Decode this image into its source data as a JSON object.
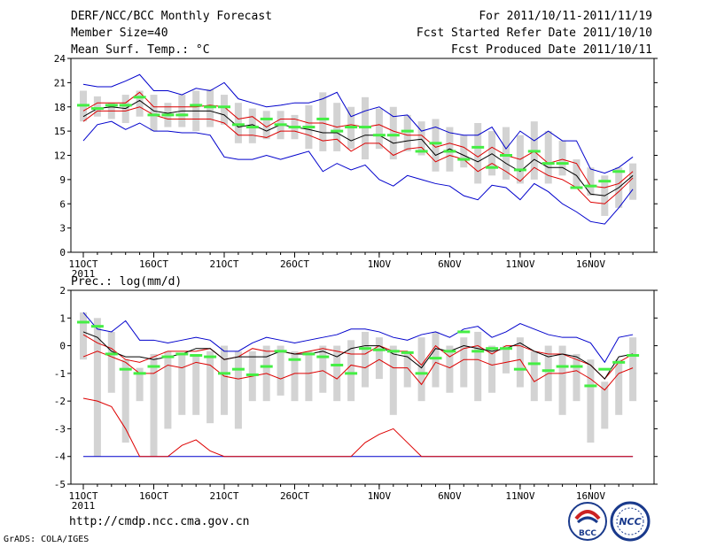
{
  "header": {
    "title": "DERF/NCC/BCC Monthly Forecast",
    "member_size": "Member Size=40",
    "variable": "Mean Surf. Temp.: °C",
    "forecast_period": "For 2011/10/11-2011/11/19",
    "refer_date": "Fcst Started Refer Date 2011/10/10",
    "produced_date": "Fcst Produced Date 2011/10/11"
  },
  "footer": {
    "url": "http://cmdp.ncc.cma.gov.cn",
    "grads": "GrADS: COLA/IGES",
    "logo_bcc": "BCC",
    "logo_ncc": "NCC"
  },
  "colors": {
    "box": "#d3d3d3",
    "outer": "#0000cc",
    "inner": "#dd0000",
    "median": "#000000",
    "obs": "#44ee44"
  },
  "chart_data": [
    {
      "type": "line",
      "title": "Mean Surf. Temp.: °C",
      "ylim": [
        0,
        24
      ],
      "yticks": [
        0,
        3,
        6,
        9,
        12,
        15,
        18,
        21,
        24
      ],
      "x_ticks": [
        {
          "day": 0,
          "label": "11OCT",
          "sub": "2011"
        },
        {
          "day": 5,
          "label": "16OCT"
        },
        {
          "day": 10,
          "label": "21OCT"
        },
        {
          "day": 15,
          "label": "26OCT"
        },
        {
          "day": 21,
          "label": "1NOV"
        },
        {
          "day": 26,
          "label": "6NOV"
        },
        {
          "day": 31,
          "label": "11NOV"
        },
        {
          "day": 36,
          "label": "16NOV"
        }
      ],
      "days": 40,
      "box_lo": [
        16.2,
        16.8,
        16.5,
        16.0,
        16.8,
        15.0,
        15.5,
        15.5,
        15.0,
        15.5,
        15.8,
        13.5,
        13.5,
        14.0,
        14.0,
        14.0,
        12.8,
        12.5,
        12.5,
        12.8,
        11.5,
        12.8,
        11.5,
        12.5,
        12.0,
        10.0,
        10.0,
        10.5,
        8.5,
        9.5,
        9.0,
        8.5,
        9.0,
        8.5,
        9.5,
        8.0,
        7.0,
        4.5,
        5.5,
        6.5
      ],
      "box_hi": [
        20.0,
        19.3,
        18.5,
        19.5,
        20.0,
        19.5,
        18.5,
        19.5,
        20.0,
        20.2,
        19.5,
        18.5,
        17.8,
        17.5,
        17.5,
        17.0,
        18.2,
        19.8,
        18.5,
        18.0,
        19.2,
        17.8,
        18.0,
        17.0,
        16.2,
        16.5,
        15.5,
        14.5,
        16.0,
        15.0,
        15.5,
        14.5,
        16.2,
        15.0,
        13.8,
        11.5,
        10.5,
        9.5,
        10.5,
        11.0
      ],
      "outer_hi": [
        20.8,
        20.5,
        20.5,
        21.2,
        22.0,
        20.0,
        20.0,
        19.5,
        20.3,
        20.0,
        21.0,
        19.0,
        18.5,
        18.0,
        18.2,
        18.5,
        18.5,
        19.0,
        19.8,
        16.8,
        17.5,
        18.0,
        16.8,
        17.0,
        15.0,
        15.5,
        14.8,
        14.5,
        14.5,
        15.5,
        12.8,
        15.0,
        13.8,
        15.0,
        13.8,
        13.8,
        10.3,
        9.8,
        10.5,
        11.8
      ],
      "outer_lo": [
        13.8,
        15.8,
        16.2,
        15.2,
        16.0,
        15.0,
        15.0,
        14.8,
        14.8,
        14.5,
        11.8,
        11.5,
        11.5,
        12.0,
        11.5,
        12.0,
        12.5,
        10.0,
        11.0,
        10.2,
        10.8,
        9.0,
        8.2,
        9.5,
        9.0,
        8.5,
        8.2,
        7.0,
        6.5,
        8.3,
        8.0,
        6.5,
        8.5,
        7.5,
        6.0,
        5.0,
        3.8,
        3.5,
        5.5,
        7.8
      ],
      "inner_hi": [
        17.5,
        18.5,
        18.5,
        18.5,
        19.8,
        18.0,
        18.0,
        18.0,
        18.0,
        18.2,
        18.0,
        16.5,
        16.8,
        15.5,
        16.5,
        16.5,
        16.0,
        16.0,
        15.5,
        15.8,
        15.5,
        15.8,
        15.0,
        14.5,
        14.5,
        13.0,
        13.5,
        13.0,
        11.8,
        13.0,
        12.0,
        11.5,
        12.5,
        11.0,
        11.5,
        11.0,
        8.2,
        8.0,
        8.5,
        10.0
      ],
      "inner_lo": [
        16.2,
        17.5,
        17.5,
        17.5,
        18.0,
        17.0,
        16.5,
        16.5,
        16.5,
        16.5,
        16.0,
        14.5,
        14.5,
        14.2,
        15.0,
        15.0,
        14.5,
        13.8,
        14.0,
        12.5,
        13.5,
        13.5,
        12.0,
        12.8,
        13.0,
        11.2,
        12.0,
        11.5,
        10.0,
        11.0,
        10.0,
        8.8,
        10.5,
        9.5,
        9.0,
        8.0,
        6.2,
        6.0,
        7.5,
        9.2
      ],
      "median": [
        16.8,
        17.8,
        18.0,
        17.8,
        18.8,
        17.5,
        17.2,
        17.5,
        17.5,
        17.5,
        17.0,
        15.5,
        15.8,
        15.0,
        15.8,
        15.5,
        15.2,
        14.8,
        14.8,
        13.8,
        14.5,
        14.5,
        13.5,
        13.8,
        14.0,
        12.0,
        12.8,
        12.0,
        11.2,
        12.2,
        11.0,
        10.0,
        11.5,
        10.5,
        10.5,
        9.5,
        7.2,
        7.0,
        8.0,
        9.5
      ],
      "obs": [
        18.2,
        17.8,
        18.2,
        18.2,
        19.2,
        17.0,
        17.0,
        17.0,
        18.2,
        18.0,
        18.0,
        15.8,
        15.5,
        16.5,
        15.8,
        15.5,
        15.5,
        16.5,
        15.0,
        15.5,
        15.5,
        14.5,
        14.5,
        15.0,
        12.5,
        13.5,
        12.5,
        11.5,
        13.0,
        10.5,
        12.0,
        10.2,
        12.5,
        11.0,
        11.0,
        8.0,
        8.2,
        8.8,
        10.0,
        null
      ]
    },
    {
      "type": "line",
      "title": "Prec.: log(mm/d)",
      "ylim": [
        -5,
        2
      ],
      "yticks": [
        -5,
        -4,
        -3,
        -2,
        -1,
        0,
        1,
        2
      ],
      "x_ticks": [
        {
          "day": 0,
          "label": "11OCT",
          "sub": "2011"
        },
        {
          "day": 5,
          "label": "16OCT"
        },
        {
          "day": 10,
          "label": "21OCT"
        },
        {
          "day": 15,
          "label": "26OCT"
        },
        {
          "day": 21,
          "label": "1NOV"
        },
        {
          "day": 26,
          "label": "6NOV"
        },
        {
          "day": 31,
          "label": "11NOV"
        },
        {
          "day": 36,
          "label": "16NOV"
        }
      ],
      "days": 40,
      "box_lo": [
        -0.5,
        -4,
        -1.7,
        -3.5,
        -2.0,
        -4,
        -3,
        -2.5,
        -2.5,
        -2.8,
        -2.5,
        -3.0,
        -2.0,
        -2.0,
        -1.8,
        -2.0,
        -2.0,
        -1.7,
        -2.0,
        -2.0,
        -1.5,
        -1.2,
        -2.5,
        -1.5,
        -2.0,
        -1.5,
        -1.7,
        -1.5,
        -2.0,
        -1.7,
        -1.0,
        -1.5,
        -2.0,
        -2.0,
        -2.5,
        -2.0,
        -3.5,
        -3.0,
        -2.5,
        -2.0
      ],
      "box_hi": [
        1.2,
        1.0,
        0.5,
        -0.5,
        -0.8,
        -0.3,
        -0.2,
        -0.3,
        -0.3,
        -0.2,
        0.0,
        -0.2,
        -0.2,
        0.0,
        0.0,
        -0.2,
        -0.2,
        0.0,
        0.0,
        0.2,
        0.5,
        0.3,
        0.0,
        -0.2,
        0.3,
        0.5,
        0.0,
        0.3,
        0.5,
        0.0,
        0.0,
        0.3,
        -0.2,
        0.0,
        0.0,
        -0.3,
        -0.5,
        -1.3,
        -0.5,
        0.3
      ],
      "outer_hi": [
        1.2,
        0.6,
        0.5,
        0.9,
        0.2,
        0.2,
        0.1,
        0.2,
        0.3,
        0.2,
        -0.2,
        -0.2,
        0.1,
        0.3,
        0.2,
        0.1,
        0.2,
        0.3,
        0.4,
        0.6,
        0.6,
        0.5,
        0.3,
        0.2,
        0.4,
        0.5,
        0.3,
        0.6,
        0.7,
        0.3,
        0.5,
        0.8,
        0.6,
        0.4,
        0.3,
        0.3,
        0.1,
        -0.6,
        0.3,
        0.4
      ],
      "outer_lo": [
        -4,
        -4,
        -4,
        -4,
        -4,
        -4,
        -4,
        -4,
        -4,
        -4,
        -4,
        -4,
        -4,
        -4,
        -4,
        -4,
        -4,
        -4,
        -4,
        -4,
        -4,
        -4,
        -4,
        -4,
        -4,
        -4,
        -4,
        -4,
        -4,
        -4,
        -4,
        -4,
        -4,
        -4,
        -4,
        -4,
        -4,
        -4,
        -4,
        -4
      ],
      "inner_hi": [
        0.4,
        0.1,
        -0.1,
        -0.5,
        -0.6,
        -0.4,
        -0.2,
        -0.2,
        -0.2,
        -0.1,
        -0.5,
        -0.4,
        -0.1,
        -0.2,
        -0.2,
        -0.3,
        -0.2,
        -0.1,
        -0.2,
        -0.3,
        -0.3,
        0.0,
        -0.2,
        -0.2,
        -0.7,
        0.0,
        -0.4,
        -0.1,
        0.0,
        -0.3,
        0.0,
        0.0,
        -0.2,
        -0.3,
        -0.3,
        -0.5,
        -0.7,
        -1.2,
        -0.6,
        -0.3
      ],
      "inner_lo": [
        -1.9,
        -2.0,
        -2.2,
        -3.0,
        -4.0,
        -4.0,
        -4.0,
        -3.6,
        -3.4,
        -3.8,
        -4.0,
        -4.0,
        -4.0,
        -4.0,
        -4.0,
        -4.0,
        -4.0,
        -4.0,
        -4.0,
        -4.0,
        -3.5,
        -3.2,
        -3.0,
        -3.5,
        -4.0,
        -4.0,
        -4.0,
        -4.0,
        -4.0,
        -4.0,
        -4.0,
        -4.0,
        -4.0,
        -4.0,
        -4.0,
        -4.0,
        -4.0,
        -4.0,
        -4.0,
        -4.0
      ],
      "red2": [
        -0.4,
        -0.2,
        -0.4,
        -0.6,
        -1.0,
        -1.0,
        -0.7,
        -0.8,
        -0.6,
        -0.7,
        -1.1,
        -1.2,
        -1.1,
        -1.0,
        -1.2,
        -1.0,
        -1.0,
        -0.9,
        -1.2,
        -0.7,
        -0.8,
        -0.5,
        -0.8,
        -0.8,
        -1.4,
        -0.6,
        -0.8,
        -0.5,
        -0.5,
        -0.7,
        -0.6,
        -0.5,
        -1.3,
        -1.0,
        -1.0,
        -0.9,
        -1.2,
        -1.6,
        -1.0,
        -0.8
      ],
      "median": [
        0.5,
        0.3,
        -0.2,
        -0.4,
        -0.4,
        -0.5,
        -0.4,
        -0.3,
        -0.1,
        -0.1,
        -0.5,
        -0.4,
        -0.4,
        -0.4,
        -0.2,
        -0.3,
        -0.3,
        -0.2,
        -0.4,
        -0.1,
        0.0,
        0.0,
        -0.3,
        -0.4,
        -0.8,
        -0.1,
        -0.2,
        0.0,
        -0.1,
        -0.2,
        -0.1,
        0.1,
        -0.2,
        -0.4,
        -0.3,
        -0.4,
        -0.7,
        -1.2,
        -0.4,
        -0.3
      ],
      "obs": [
        0.85,
        0.7,
        -0.3,
        -0.85,
        -1.0,
        -0.75,
        -0.4,
        -0.3,
        -0.35,
        -0.4,
        -1.0,
        -0.85,
        -1.05,
        -0.75,
        -0.2,
        -0.5,
        -0.3,
        -0.4,
        -0.7,
        -1.0,
        -0.1,
        -0.15,
        -0.2,
        -0.25,
        -1.0,
        -0.45,
        -0.2,
        0.5,
        -0.2,
        -0.1,
        -0.1,
        -0.85,
        -0.65,
        -0.9,
        -0.75,
        -0.75,
        -1.45,
        -0.85,
        -0.6,
        -0.35
      ]
    }
  ]
}
